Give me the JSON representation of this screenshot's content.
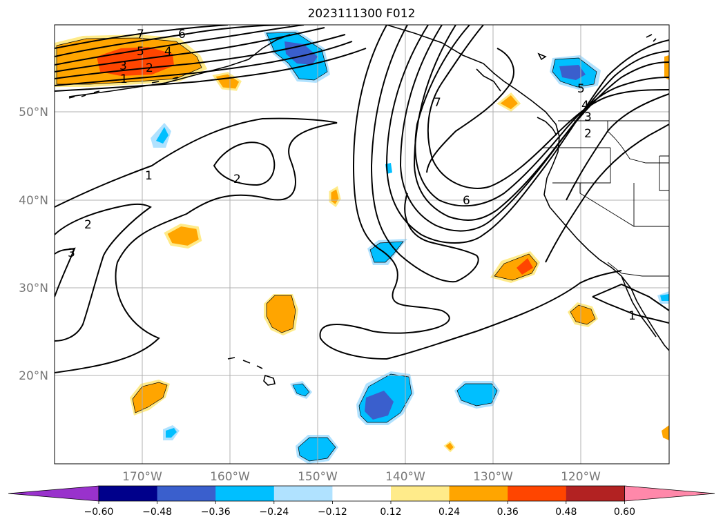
{
  "title": "2023111300 F012",
  "lat_labels": [
    "50°N",
    "40°N",
    "30°N",
    "20°N"
  ],
  "lon_labels": [
    "170°W",
    "160°W",
    "150°W",
    "140°W",
    "130°W",
    "120°W"
  ],
  "colorbar": {
    "ticks": [
      "−0.60",
      "−0.48",
      "−0.36",
      "−0.24",
      "−0.12",
      "0.12",
      "0.24",
      "0.36",
      "0.48",
      "0.60"
    ],
    "colors": [
      "#9932cc",
      "#00008b",
      "#3a5fcd",
      "#00bfff",
      "#b0e2ff",
      "#ffffff",
      "#ffeb8a",
      "#ffa500",
      "#ff4500",
      "#b22222",
      "#ff88aa"
    ]
  },
  "contour_labels": [
    "7",
    "6",
    "5",
    "4",
    "3",
    "2",
    "1",
    "1",
    "2",
    "2",
    "3",
    "7",
    "6",
    "5",
    "4",
    "3",
    "2",
    "1"
  ]
}
